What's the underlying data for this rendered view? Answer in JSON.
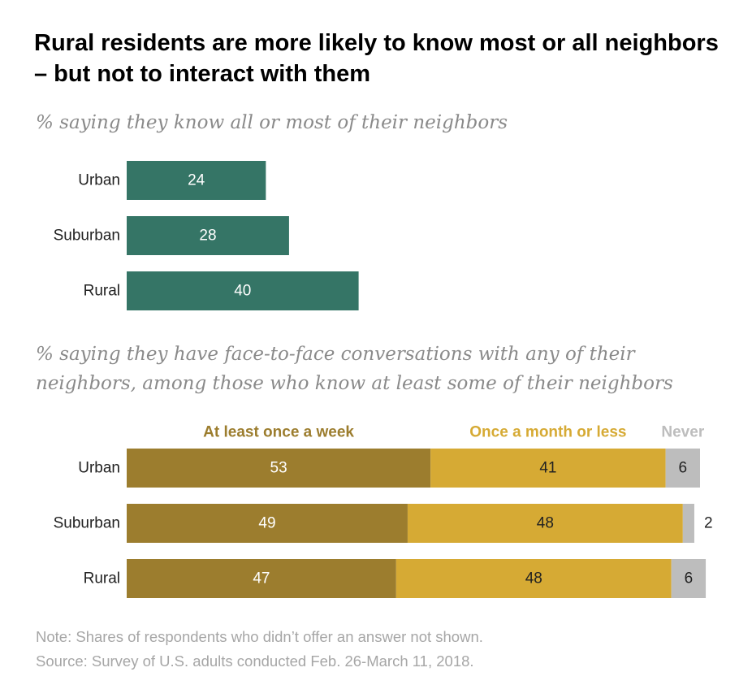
{
  "title": "Rural residents are more likely to know most or all neighbors – but not to interact with them",
  "colors": {
    "know": "#357566",
    "week": "#9c7d2e",
    "month": "#d6aa34",
    "never": "#bdbdbd",
    "subtitle": "#8a8a8a",
    "note": "#a6a6a6"
  },
  "chart_data": [
    {
      "type": "bar",
      "orientation": "horizontal",
      "subtitle": "% saying they know all or most of their neighbors",
      "categories": [
        "Urban",
        "Suburban",
        "Rural"
      ],
      "values": [
        24,
        28,
        40
      ],
      "grid": false
    },
    {
      "type": "bar",
      "orientation": "horizontal",
      "stacked": true,
      "subtitle": "% saying they have face-to-face conversations with any of their neighbors, among those who know at least some of their neighbors",
      "categories": [
        "Urban",
        "Suburban",
        "Rural"
      ],
      "series": [
        {
          "name": "At least once a week",
          "values": [
            53,
            49,
            47
          ]
        },
        {
          "name": "Once a month or less",
          "values": [
            41,
            48,
            48
          ]
        },
        {
          "name": "Never",
          "values": [
            6,
            2,
            6
          ]
        }
      ],
      "legend": "top",
      "grid": false
    }
  ],
  "notes": {
    "note": "Note: Shares of respondents who didn’t offer an answer not shown.",
    "source": "Source: Survey of U.S. adults conducted Feb. 26-March 11, 2018."
  }
}
